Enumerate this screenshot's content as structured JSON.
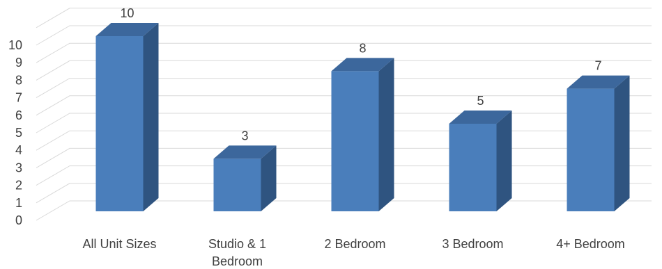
{
  "chart_data": {
    "type": "bar",
    "style": "3d-column",
    "categories": [
      "All Unit Sizes",
      "Studio & 1 Bedroom",
      "2 Bedroom",
      "3 Bedroom",
      "4+ Bedroom"
    ],
    "category_lines": [
      [
        "All Unit Sizes"
      ],
      [
        "Studio & 1",
        "Bedroom"
      ],
      [
        "2 Bedroom"
      ],
      [
        "3 Bedroom"
      ],
      [
        "4+ Bedroom"
      ]
    ],
    "values": [
      10,
      3,
      8,
      5,
      7
    ],
    "data_labels": [
      "10",
      "3",
      "8",
      "5",
      "7"
    ],
    "yticks": [
      "0",
      "1",
      "2",
      "3",
      "4",
      "5",
      "6",
      "7",
      "8",
      "9",
      "10"
    ],
    "ylim": [
      0,
      10
    ],
    "grid": true,
    "legend": "none",
    "title": "",
    "xlabel": "",
    "ylabel": "",
    "colors": {
      "bar_front": "#4a7ebb",
      "bar_side": "#2f5480",
      "bar_top": "#3c679c",
      "grid": "#d9d9d9",
      "text": "#404040"
    }
  }
}
